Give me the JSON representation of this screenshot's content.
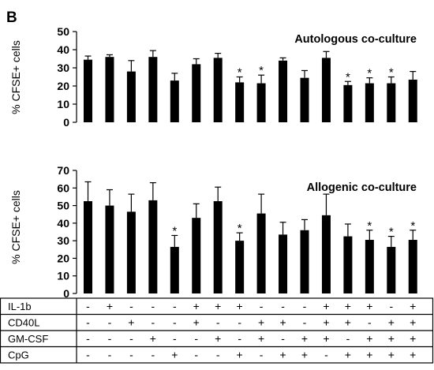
{
  "panel_label": "B",
  "chart_data": [
    {
      "type": "bar",
      "title": "Autologous co-culture",
      "ylabel": "% CFSE+ cells",
      "xlabel": "",
      "ylim": [
        0,
        50
      ],
      "yticks": [
        0,
        10,
        20,
        30,
        40,
        50
      ],
      "grid": false,
      "values": [
        34.5,
        36,
        28,
        36,
        23,
        32,
        35.5,
        22,
        21.5,
        34,
        24.5,
        35.5,
        20.5,
        21.5,
        21.5,
        23.5
      ],
      "errors": [
        2,
        1.2,
        6,
        3.5,
        4,
        3,
        2.5,
        3,
        4.5,
        1.5,
        4,
        3.5,
        2,
        3,
        3.5,
        4.5
      ],
      "significant": [
        false,
        false,
        false,
        false,
        false,
        false,
        false,
        true,
        true,
        false,
        false,
        false,
        true,
        true,
        true,
        false
      ],
      "star_label": "*"
    },
    {
      "type": "bar",
      "title": "Allogenic co-culture",
      "ylabel": "% CFSE+ cells",
      "xlabel": "",
      "ylim": [
        0,
        70
      ],
      "yticks": [
        0,
        10,
        20,
        30,
        40,
        50,
        60,
        70
      ],
      "grid": false,
      "values": [
        52.5,
        50,
        46.5,
        53,
        26.5,
        43,
        52.5,
        30,
        45.5,
        33.5,
        36,
        44.5,
        32.5,
        30.5,
        26.5,
        30.5
      ],
      "errors": [
        11,
        9,
        10,
        10,
        6.5,
        8,
        8,
        4.5,
        11,
        7,
        6,
        12,
        7,
        5.5,
        6,
        5.5
      ],
      "significant": [
        false,
        false,
        false,
        false,
        true,
        false,
        false,
        true,
        false,
        false,
        false,
        false,
        false,
        true,
        true,
        true
      ],
      "star_label": "*"
    }
  ],
  "treatment_table": {
    "rows": [
      {
        "label": "IL-1b",
        "signs": [
          "-",
          "+",
          "-",
          "-",
          "-",
          "+",
          "+",
          "+",
          "-",
          "-",
          "-",
          "+",
          "+",
          "+",
          "-",
          "+"
        ]
      },
      {
        "label": "CD40L",
        "signs": [
          "-",
          "-",
          "+",
          "-",
          "-",
          "+",
          "-",
          "-",
          "+",
          "+",
          "-",
          "+",
          "+",
          "-",
          "+",
          "+"
        ]
      },
      {
        "label": "GM-CSF",
        "signs": [
          "-",
          "-",
          "-",
          "+",
          "-",
          "-",
          "+",
          "-",
          "+",
          "-",
          "+",
          "+",
          "-",
          "+",
          "+",
          "+"
        ]
      },
      {
        "label": "CpG",
        "signs": [
          "-",
          "-",
          "-",
          "-",
          "+",
          "-",
          "-",
          "+",
          "-",
          "+",
          "+",
          "-",
          "+",
          "+",
          "+",
          "+"
        ]
      }
    ]
  }
}
